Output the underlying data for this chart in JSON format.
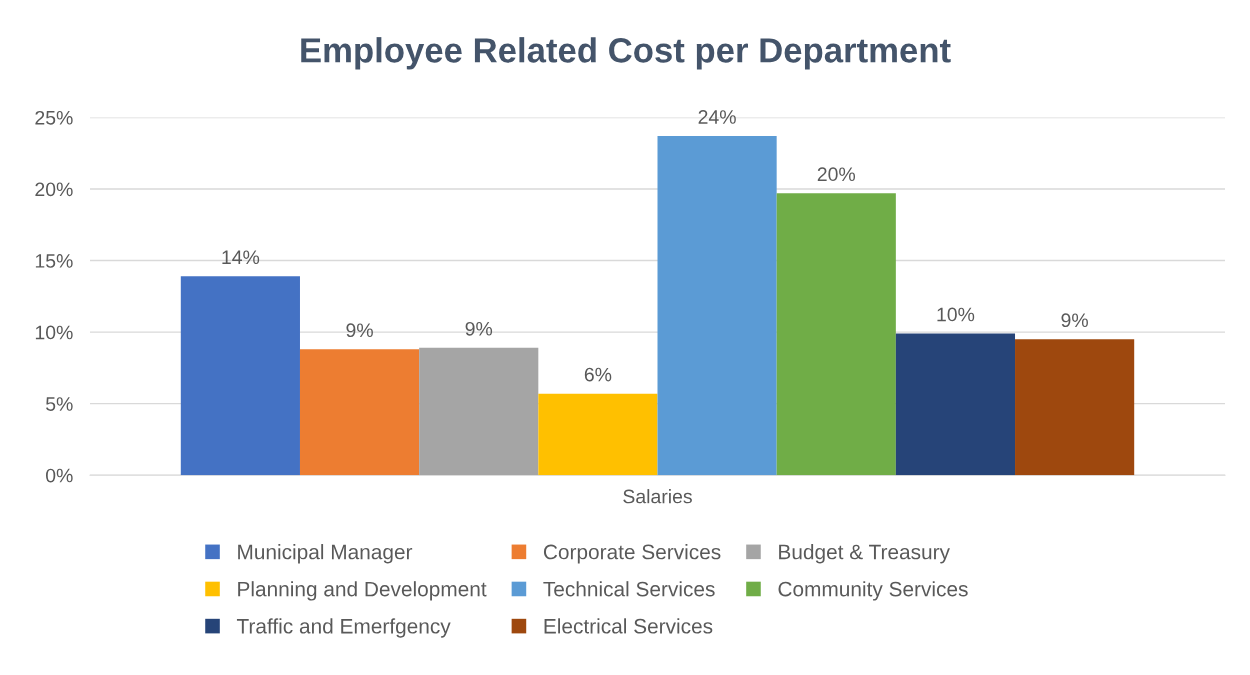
{
  "chart_data": {
    "type": "bar",
    "title": "Employee Related Cost per Department",
    "categories": [
      "Salaries"
    ],
    "series": [
      {
        "name": "Municipal Manager",
        "color": "#4472c4",
        "values": [
          13.9
        ],
        "value_labels": [
          "14%"
        ]
      },
      {
        "name": "Corporate Services",
        "color": "#ed7d31",
        "values": [
          8.8
        ],
        "value_labels": [
          "9%"
        ]
      },
      {
        "name": "Budget & Treasury",
        "color": "#a5a5a5",
        "values": [
          8.9
        ],
        "value_labels": [
          "9%"
        ]
      },
      {
        "name": "Planning and Development",
        "color": "#ffc000",
        "values": [
          5.7
        ],
        "value_labels": [
          "6%"
        ]
      },
      {
        "name": "Technical Services",
        "color": "#5b9bd5",
        "values": [
          23.7
        ],
        "value_labels": [
          "24%"
        ]
      },
      {
        "name": "Community Services",
        "color": "#70ad47",
        "values": [
          19.7
        ],
        "value_labels": [
          "20%"
        ]
      },
      {
        "name": "Traffic and Emerfgency",
        "color": "#264478",
        "values": [
          9.9
        ],
        "value_labels": [
          "10%"
        ]
      },
      {
        "name": "Electrical Services",
        "color": "#9e480e",
        "values": [
          9.5
        ],
        "value_labels": [
          "9%"
        ]
      }
    ],
    "ylim": [
      0,
      25
    ],
    "yticks": [
      {
        "value": 0,
        "label": "0%"
      },
      {
        "value": 5,
        "label": "5%"
      },
      {
        "value": 10,
        "label": "10%"
      },
      {
        "value": 15,
        "label": "15%"
      },
      {
        "value": 20,
        "label": "20%"
      },
      {
        "value": 25,
        "label": "25%"
      }
    ],
    "grid": "y",
    "legend": "bottom"
  }
}
